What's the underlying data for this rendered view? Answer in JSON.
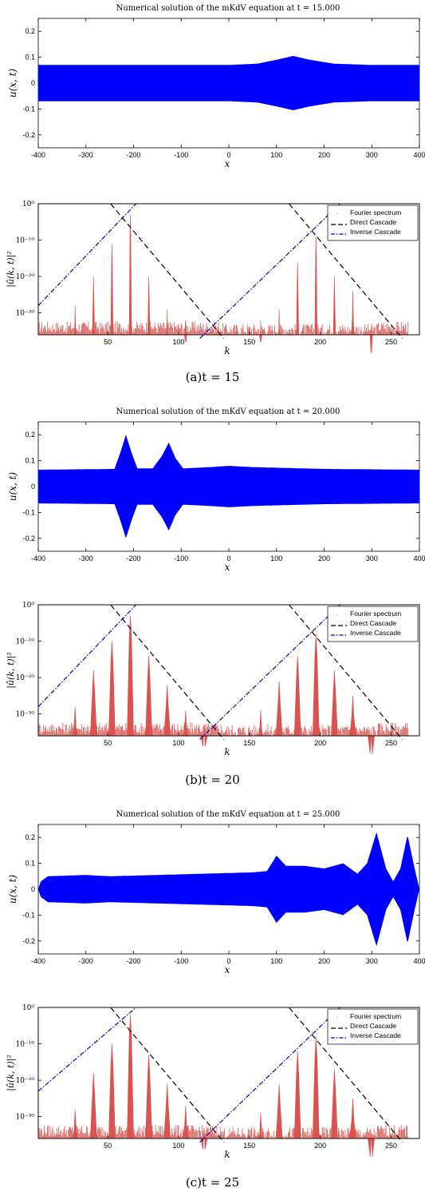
{
  "panels": [
    {
      "caption": "(a)t = 15",
      "wave": {
        "title": "Numerical solution of the mKdV equation at t = 15.000",
        "xlabel": "x",
        "ylabel": "u(x, t)",
        "xlim": [
          -400,
          400
        ],
        "ylim": [
          -0.25,
          0.25
        ],
        "xticks": [
          "-400",
          "-300",
          "-200",
          "-100",
          "0",
          "100",
          "200",
          "300",
          "400"
        ],
        "yticks": [
          "-0.2",
          "-0.1",
          "0",
          "0.1",
          "0.2"
        ],
        "envelope": [
          [
            -400,
            0.07
          ],
          [
            -200,
            0.07
          ],
          [
            0,
            0.07
          ],
          [
            60,
            0.075
          ],
          [
            100,
            0.09
          ],
          [
            135,
            0.105
          ],
          [
            170,
            0.09
          ],
          [
            220,
            0.075
          ],
          [
            300,
            0.07
          ],
          [
            400,
            0.07
          ]
        ]
      },
      "spectrum": {
        "xlabel": "k",
        "ylabel": "|û(k, t)|²",
        "xlim": [
          1,
          270
        ],
        "ylim_exp": [
          -36,
          0
        ],
        "xticks": [
          "50",
          "100",
          "150",
          "200",
          "250"
        ],
        "yticks": [
          "10⁰",
          "10⁻¹⁰",
          "10⁻²⁰",
          "10⁻³⁰"
        ],
        "peaks": [
          [
            27,
            -28
          ],
          [
            40,
            -20
          ],
          [
            53,
            -11
          ],
          [
            66,
            -3
          ],
          [
            79,
            -20
          ],
          [
            92,
            -29
          ],
          [
            105,
            -32
          ],
          [
            158,
            -32
          ],
          [
            171,
            -29
          ],
          [
            184,
            -16
          ],
          [
            197,
            -9
          ],
          [
            210,
            -20
          ],
          [
            223,
            -24
          ],
          [
            236,
            -35
          ]
        ],
        "legend": [
          "Fourier spectrum",
          "Direct Cascade",
          "Inverse Cascade"
        ],
        "direct_lines": [
          [
            [
              52,
              0
            ],
            [
              132,
              -37
            ]
          ],
          [
            [
              178,
              0
            ],
            [
              258,
              -37
            ]
          ]
        ],
        "inverse_lines": [
          [
            [
              1,
              -28
            ],
            [
              70,
              0
            ]
          ],
          [
            [
              115,
              -37
            ],
            [
              214,
              0
            ]
          ]
        ]
      }
    },
    {
      "caption": "(b)t = 20",
      "wave": {
        "title": "Numerical solution of the mKdV equation at t = 20.000",
        "xlabel": "x",
        "ylabel": "u(x, t)",
        "xlim": [
          -400,
          400
        ],
        "ylim": [
          -0.25,
          0.25
        ],
        "xticks": [
          "-400",
          "-300",
          "-200",
          "-100",
          "0",
          "100",
          "200",
          "300",
          "400"
        ],
        "yticks": [
          "-0.2",
          "-0.1",
          "0",
          "0.1",
          "0.2"
        ],
        "envelope": [
          [
            -400,
            0.065
          ],
          [
            -240,
            0.068
          ],
          [
            -228,
            0.13
          ],
          [
            -216,
            0.2
          ],
          [
            -204,
            0.13
          ],
          [
            -192,
            0.07
          ],
          [
            -160,
            0.07
          ],
          [
            -140,
            0.12
          ],
          [
            -126,
            0.17
          ],
          [
            -112,
            0.11
          ],
          [
            -96,
            0.07
          ],
          [
            -40,
            0.075
          ],
          [
            0,
            0.08
          ],
          [
            50,
            0.075
          ],
          [
            200,
            0.068
          ],
          [
            400,
            0.065
          ]
        ]
      },
      "spectrum": {
        "xlabel": "k",
        "ylabel": "|û(k, t)|²",
        "xlim": [
          1,
          270
        ],
        "ylim_exp": [
          -36,
          0
        ],
        "xticks": [
          "50",
          "100",
          "150",
          "200",
          "250"
        ],
        "yticks": [
          "10⁰",
          "10⁻¹⁰",
          "10⁻²⁰",
          "10⁻³⁰"
        ],
        "peaks": [
          [
            27,
            -28
          ],
          [
            40,
            -18
          ],
          [
            53,
            -10
          ],
          [
            66,
            -3
          ],
          [
            79,
            -14
          ],
          [
            92,
            -22
          ],
          [
            105,
            -29
          ],
          [
            118,
            -33
          ],
          [
            158,
            -29
          ],
          [
            171,
            -21
          ],
          [
            184,
            -14
          ],
          [
            197,
            -8
          ],
          [
            210,
            -18
          ],
          [
            223,
            -25
          ],
          [
            236,
            -35
          ]
        ],
        "legend": [
          "Fourier spectrum",
          "Direct Cascade",
          "Inverse Cascade"
        ],
        "direct_lines": [
          [
            [
              52,
              0
            ],
            [
              132,
              -37
            ]
          ],
          [
            [
              178,
              0
            ],
            [
              258,
              -37
            ]
          ]
        ],
        "inverse_lines": [
          [
            [
              1,
              -28
            ],
            [
              70,
              0
            ]
          ],
          [
            [
              115,
              -37
            ],
            [
              214,
              0
            ]
          ]
        ]
      }
    },
    {
      "caption": "(c)t = 25",
      "wave": {
        "title": "Numerical solution of the mKdV equation at t = 25.000",
        "xlabel": "x",
        "ylabel": "u(x, t)",
        "xlim": [
          -400,
          400
        ],
        "ylim": [
          -0.25,
          0.25
        ],
        "xticks": [
          "-400",
          "-300",
          "-200",
          "-100",
          "0",
          "100",
          "200",
          "300",
          "400"
        ],
        "yticks": [
          "-0.2",
          "-0.1",
          "0",
          "0.1",
          "0.2"
        ],
        "envelope": [
          [
            -400,
            0.0
          ],
          [
            -395,
            0.03
          ],
          [
            -380,
            0.05
          ],
          [
            -300,
            0.055
          ],
          [
            -250,
            0.05
          ],
          [
            -150,
            0.055
          ],
          [
            -50,
            0.06
          ],
          [
            50,
            0.065
          ],
          [
            80,
            0.07
          ],
          [
            100,
            0.13
          ],
          [
            120,
            0.09
          ],
          [
            160,
            0.09
          ],
          [
            200,
            0.08
          ],
          [
            240,
            0.1
          ],
          [
            270,
            0.06
          ],
          [
            290,
            0.1
          ],
          [
            310,
            0.22
          ],
          [
            330,
            0.08
          ],
          [
            345,
            0.03
          ],
          [
            360,
            0.08
          ],
          [
            375,
            0.21
          ],
          [
            390,
            0.08
          ],
          [
            400,
            0.0
          ]
        ]
      },
      "spectrum": {
        "xlabel": "k",
        "ylabel": "|û(k, t)|²",
        "xlim": [
          1,
          270
        ],
        "ylim_exp": [
          -36,
          0
        ],
        "xticks": [
          "50",
          "100",
          "150",
          "200",
          "250"
        ],
        "yticks": [
          "10⁰",
          "10⁻¹⁰",
          "10⁻²⁰",
          "10⁻³⁰"
        ],
        "peaks": [
          [
            27,
            -28
          ],
          [
            40,
            -18
          ],
          [
            53,
            -10
          ],
          [
            66,
            -2
          ],
          [
            79,
            -13
          ],
          [
            92,
            -21
          ],
          [
            105,
            -27
          ],
          [
            118,
            -33
          ],
          [
            158,
            -29
          ],
          [
            171,
            -21
          ],
          [
            184,
            -12
          ],
          [
            197,
            -8
          ],
          [
            210,
            -17
          ],
          [
            223,
            -25
          ],
          [
            236,
            -35
          ]
        ],
        "legend": [
          "Fourier spectrum",
          "Direct Cascade",
          "Inverse Cascade"
        ],
        "direct_lines": [
          [
            [
              52,
              0
            ],
            [
              132,
              -37
            ]
          ],
          [
            [
              178,
              0
            ],
            [
              258,
              -37
            ]
          ]
        ],
        "inverse_lines": [
          [
            [
              1,
              -23
            ],
            [
              70,
              0
            ]
          ],
          [
            [
              115,
              -37
            ],
            [
              214,
              0
            ]
          ]
        ]
      }
    }
  ],
  "colors": {
    "wave_fill": "#0000ff",
    "spectrum": "#d9534f",
    "direct": "#000000",
    "inverse": "#0000cc"
  },
  "chart_data": [
    {
      "type": "area",
      "title": "Numerical solution of the mKdV equation at t = 15.000",
      "xlabel": "x",
      "ylabel": "u(x, t)",
      "xlim": [
        -400,
        400
      ],
      "ylim": [
        -0.25,
        0.25
      ],
      "x": [
        -400,
        -200,
        0,
        100,
        135,
        170,
        300,
        400
      ],
      "series": [
        {
          "values": [
            0.07,
            0.07,
            0.07,
            0.09,
            0.105,
            0.09,
            0.07,
            0.07
          ]
        }
      ]
    },
    {
      "type": "scatter",
      "xlabel": "k",
      "ylabel": "|û(k, t)|²",
      "log_y": true,
      "xlim": [
        1,
        270
      ],
      "ylim": [
        "1e-36",
        "1"
      ],
      "series": [
        {
          "name": "Fourier spectrum",
          "x": [
            27,
            40,
            53,
            66,
            79,
            92,
            105,
            158,
            171,
            184,
            197,
            210,
            223,
            236
          ],
          "values": [
            "1e-28",
            "1e-20",
            "1e-11",
            "1e-3",
            "1e-20",
            "1e-29",
            "1e-32",
            "1e-32",
            "1e-29",
            "1e-16",
            "1e-9",
            "1e-20",
            "1e-24",
            "1e-35"
          ]
        },
        {
          "name": "Direct Cascade"
        },
        {
          "name": "Inverse Cascade"
        }
      ]
    },
    {
      "type": "area",
      "title": "Numerical solution of the mKdV equation at t = 20.000",
      "xlabel": "x",
      "ylabel": "u(x, t)",
      "xlim": [
        -400,
        400
      ],
      "ylim": [
        -0.25,
        0.25
      ],
      "x": [
        -400,
        -216,
        -160,
        -126,
        0,
        400
      ],
      "series": [
        {
          "values": [
            0.065,
            0.2,
            0.07,
            0.17,
            0.08,
            0.065
          ]
        }
      ]
    },
    {
      "type": "scatter",
      "xlabel": "k",
      "ylabel": "|û(k, t)|²",
      "log_y": true,
      "xlim": [
        1,
        270
      ],
      "ylim": [
        "1e-36",
        "1"
      ],
      "series": [
        {
          "name": "Fourier spectrum",
          "x": [
            27,
            40,
            53,
            66,
            79,
            92,
            105,
            158,
            171,
            184,
            197,
            210,
            223,
            236
          ],
          "values": [
            "1e-28",
            "1e-18",
            "1e-10",
            "1e-3",
            "1e-14",
            "1e-22",
            "1e-29",
            "1e-29",
            "1e-21",
            "1e-14",
            "1e-8",
            "1e-18",
            "1e-25",
            "1e-35"
          ]
        },
        {
          "name": "Direct Cascade"
        },
        {
          "name": "Inverse Cascade"
        }
      ]
    },
    {
      "type": "area",
      "title": "Numerical solution of the mKdV equation at t = 25.000",
      "xlabel": "x",
      "ylabel": "u(x, t)",
      "xlim": [
        -400,
        400
      ],
      "ylim": [
        -0.25,
        0.25
      ],
      "x": [
        -400,
        -300,
        0,
        100,
        240,
        310,
        345,
        375,
        400
      ],
      "series": [
        {
          "values": [
            0.0,
            0.055,
            0.062,
            0.13,
            0.1,
            0.22,
            0.03,
            0.21,
            0.0
          ]
        }
      ]
    },
    {
      "type": "scatter",
      "xlabel": "k",
      "ylabel": "|û(k, t)|²",
      "log_y": true,
      "xlim": [
        1,
        270
      ],
      "ylim": [
        "1e-36",
        "1"
      ],
      "series": [
        {
          "name": "Fourier spectrum",
          "x": [
            27,
            40,
            53,
            66,
            79,
            92,
            105,
            158,
            171,
            184,
            197,
            210,
            223,
            236
          ],
          "values": [
            "1e-28",
            "1e-18",
            "1e-10",
            "1e-2",
            "1e-13",
            "1e-21",
            "1e-27",
            "1e-29",
            "1e-21",
            "1e-12",
            "1e-8",
            "1e-17",
            "1e-25",
            "1e-35"
          ]
        },
        {
          "name": "Direct Cascade"
        },
        {
          "name": "Inverse Cascade"
        }
      ]
    }
  ]
}
